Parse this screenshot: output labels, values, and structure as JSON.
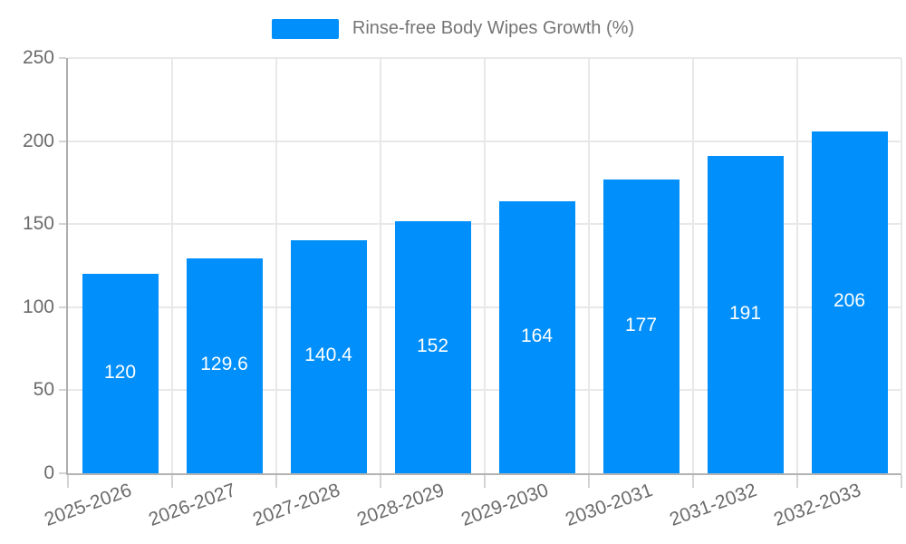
{
  "legend": {
    "label": "Rinse-free Body Wipes Growth (%)",
    "swatch_color": "#008FFB"
  },
  "chart_data": {
    "type": "bar",
    "title": "Rinse-free Body Wipes Growth (%)",
    "categories": [
      "2025-2026",
      "2026-2027",
      "2027-2028",
      "2028-2029",
      "2029-2030",
      "2030-2031",
      "2031-2032",
      "2032-2033"
    ],
    "values": [
      120,
      129.6,
      140.4,
      152,
      164,
      177,
      191,
      206
    ],
    "value_labels": [
      "120",
      "129.6",
      "140.4",
      "152",
      "164",
      "177",
      "191",
      "206"
    ],
    "xlabel": "",
    "ylabel": "",
    "ylim": [
      0,
      250
    ],
    "yticks": [
      0,
      50,
      100,
      150,
      200,
      250
    ],
    "grid": "on",
    "legend_position": "top",
    "bar_color": "#008FFB",
    "value_label_color": "#ffffff",
    "axis_label_color": "#6b6b6b",
    "grid_color": "#e8e8e8",
    "axis_line_color": "#b3b3b3"
  }
}
